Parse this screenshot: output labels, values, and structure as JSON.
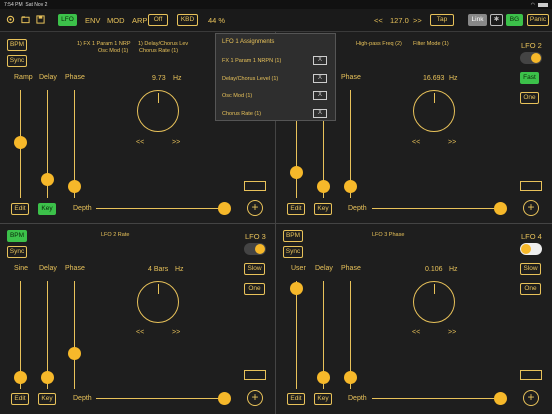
{
  "status": {
    "time": "7:54 PM",
    "date": "Sat Nov 2"
  },
  "toolbar": {
    "lfo": "LFO",
    "env": "ENV",
    "mod": "MOD",
    "arp": "ARP",
    "off": "Off",
    "kbd": "KBD",
    "percent": "44 %",
    "prev": "<<",
    "tempo": "127.0",
    "next": ">>",
    "tap": "Tap",
    "link": "Link",
    "bg": "BG",
    "panic": "Panic"
  },
  "lfo1": {
    "bpm": "BPM",
    "sync": "Sync",
    "targets": [
      "1)  FX 1 Param 1 NRP",
      "1)  Delay/Chorus Lev",
      "Osc Mod (1)",
      "Chorus Rate (1)"
    ],
    "ramp": "Ramp",
    "delay": "Delay",
    "phase": "Phase",
    "value": "9.73",
    "unit": "Hz",
    "prev": "<<",
    "next": ">>",
    "edit": "Edit",
    "key": "Key",
    "depth": "Depth",
    "plus": "+"
  },
  "lfo2": {
    "title": "LFO 2",
    "targets": [
      "High-pass Freq (2)",
      "Filter Mode (1)"
    ],
    "phase": "Phase",
    "value": "16.693",
    "unit": "Hz",
    "prev": "<<",
    "next": ">>",
    "fast": "Fast",
    "one": "One",
    "edit": "Edit",
    "key": "Key",
    "depth": "Depth",
    "plus": "+"
  },
  "lfo3": {
    "bpm": "BPM",
    "sync": "Sync",
    "title": "LFO 3",
    "target": "LFO 2 Rate",
    "sine": "Sine",
    "delay": "Delay",
    "phase": "Phase",
    "value": "4 Bars",
    "unit": "Hz",
    "prev": "<<",
    "next": ">>",
    "slow": "Slow",
    "one": "One",
    "edit": "Edit",
    "key": "Key",
    "depth": "Depth",
    "plus": "+"
  },
  "lfo4": {
    "bpm": "BPM",
    "sync": "Sync",
    "title": "LFO 4",
    "target": "LFO 3 Phase",
    "user": "User",
    "delay": "Delay",
    "phase": "Phase",
    "value": "0.106",
    "unit": "Hz",
    "prev": "<<",
    "next": ">>",
    "slow": "Slow",
    "one": "One",
    "edit": "Edit",
    "key": "Key",
    "depth": "Depth",
    "plus": "+"
  },
  "popup": {
    "title": "LFO 1 Assignments",
    "rows": [
      "FX 1 Param 1 NRPN (1)",
      "Delay/Chorus Level (1)",
      "Osc Mod (1)",
      "Chorus Rate (1)"
    ],
    "x": "X"
  }
}
